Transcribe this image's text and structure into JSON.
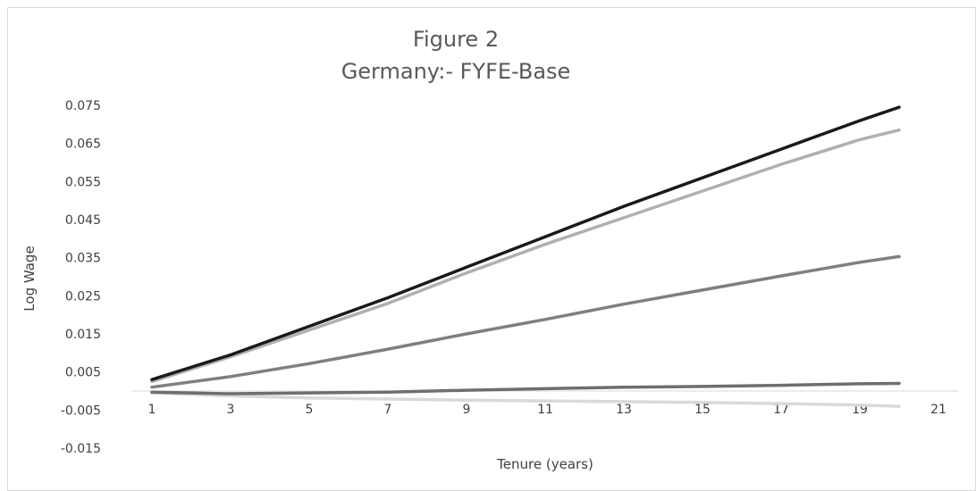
{
  "chart_data": {
    "type": "line",
    "title": "Figure 2",
    "subtitle": "Germany:- FYFE-Base",
    "xlabel": "Tenure (years)",
    "ylabel": "Log Wage",
    "ylim": [
      -0.015,
      0.075
    ],
    "xlim": [
      1,
      21
    ],
    "grid": false,
    "legend": "none",
    "x_ticks": [
      "1",
      "3",
      "5",
      "7",
      "9",
      "11",
      "13",
      "15",
      "17",
      "19",
      "21"
    ],
    "y_ticks": [
      "0.075",
      "0.065",
      "0.055",
      "0.045",
      "0.035",
      "0.025",
      "0.015",
      "0.005",
      "-0.005",
      "-0.015"
    ],
    "x": [
      1,
      3,
      5,
      7,
      9,
      11,
      13,
      15,
      17,
      19,
      20
    ],
    "series": [
      {
        "color": "#1a1a1a",
        "values": [
          0.003,
          0.0095,
          0.017,
          0.0245,
          0.0325,
          0.0405,
          0.0485,
          0.056,
          0.0635,
          0.071,
          0.0745
        ]
      },
      {
        "color": "#b0b0b0",
        "values": [
          0.0025,
          0.009,
          0.016,
          0.023,
          0.031,
          0.0385,
          0.0455,
          0.0525,
          0.0595,
          0.066,
          0.0685
        ]
      },
      {
        "color": "#7f7f7f",
        "values": [
          0.001,
          0.0038,
          0.0072,
          0.011,
          0.015,
          0.0188,
          0.0228,
          0.0265,
          0.0302,
          0.0338,
          0.0353
        ]
      },
      {
        "color": "#6e6e6e",
        "values": [
          -0.0003,
          -0.0007,
          -0.0005,
          -0.0003,
          0.0002,
          0.0006,
          0.001,
          0.0012,
          0.0015,
          0.0019,
          0.002
        ]
      },
      {
        "color": "#d9d9d9",
        "values": [
          -0.0005,
          -0.0013,
          -0.0018,
          -0.0021,
          -0.0024,
          -0.0026,
          -0.0028,
          -0.003,
          -0.0033,
          -0.0037,
          -0.004
        ]
      }
    ]
  }
}
